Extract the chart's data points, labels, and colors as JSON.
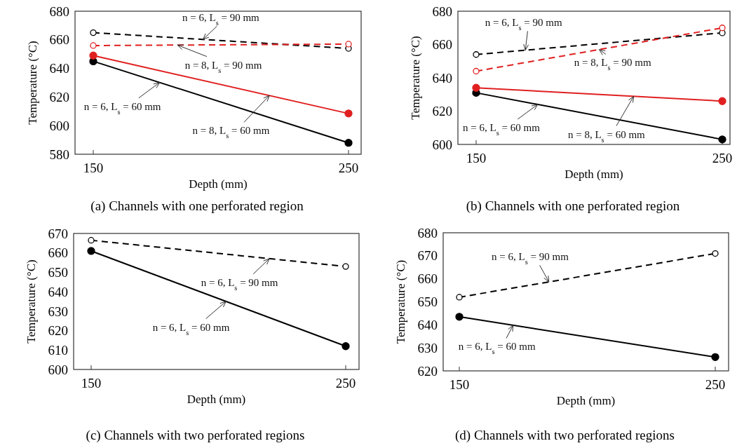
{
  "chart_data": [
    {
      "type": "line",
      "title": "(a) Channels with one perforated region",
      "xlabel": "Depth (mm)",
      "ylabel": "Temperature (°C)",
      "categories": [
        "150",
        "250"
      ],
      "ylim": [
        580,
        680
      ],
      "yticks": [
        580,
        600,
        620,
        640,
        660,
        680
      ],
      "marker": "circle",
      "series": [
        {
          "name": "n = 6, L$_{s}$ = 90 mm",
          "color": "#000000",
          "line_style": "dashed",
          "values": [
            665,
            654
          ]
        },
        {
          "name": "n = 8, L$_{s}$ = 90 mm",
          "color": "#e02020",
          "line_style": "dashed",
          "values": [
            656,
            657
          ]
        },
        {
          "name": "n = 6, L$_{s}$ = 60 mm",
          "color": "#000000",
          "line_style": "solid",
          "values": [
            645,
            588
          ]
        },
        {
          "name": "n = 8, L$_{s}$ = 60 mm",
          "color": "#e02020",
          "line_style": "solid",
          "values": [
            649,
            608.5
          ]
        }
      ]
    },
    {
      "type": "line",
      "title": "(b) Channels with one perforated region",
      "xlabel": "Depth (mm)",
      "ylabel": "Temperature (°C)",
      "categories": [
        "150",
        "250"
      ],
      "ylim": [
        600,
        680
      ],
      "yticks": [
        600,
        620,
        640,
        660,
        680
      ],
      "marker": "circle",
      "series": [
        {
          "name": "n = 6, L$_{s}$ = 90 mm",
          "color": "#000000",
          "line_style": "dashed",
          "values": [
            654,
            667
          ]
        },
        {
          "name": "n = 8, L$_{s}$ = 90 mm",
          "color": "#e02020",
          "line_style": "dashed",
          "values": [
            644,
            670
          ]
        },
        {
          "name": "n = 6, L$_{s}$ = 60 mm",
          "color": "#000000",
          "line_style": "solid",
          "values": [
            631,
            603
          ]
        },
        {
          "name": "n = 8, L$_{s}$ = 60 mm",
          "color": "#e02020",
          "line_style": "solid",
          "values": [
            634,
            626
          ]
        }
      ]
    },
    {
      "type": "line",
      "title": "(c) Channels with two perforated regions",
      "xlabel": "Depth (mm)",
      "ylabel": "Temperature (°C)",
      "categories": [
        "150",
        "250"
      ],
      "ylim": [
        600,
        670
      ],
      "yticks": [
        600,
        610,
        620,
        630,
        640,
        650,
        660,
        670
      ],
      "marker": "circle",
      "series": [
        {
          "name": "n = 6, L$_{s}$ = 90 mm",
          "color": "#000000",
          "line_style": "dashed",
          "values": [
            666.5,
            653
          ]
        },
        {
          "name": "n = 6, L$_{s}$ = 60 mm",
          "color": "#000000",
          "line_style": "solid",
          "values": [
            661,
            612
          ]
        }
      ]
    },
    {
      "type": "line",
      "title": "(d) Channels with two perforated regions",
      "xlabel": "Depth (mm)",
      "ylabel": "Temperature (°C)",
      "categories": [
        "150",
        "250"
      ],
      "ylim": [
        620,
        680
      ],
      "yticks": [
        620,
        630,
        640,
        650,
        660,
        670,
        680
      ],
      "marker": "circle",
      "series": [
        {
          "name": "n = 6, L$_{s}$ = 90 mm",
          "color": "#000000",
          "line_style": "dashed",
          "values": [
            652,
            671
          ]
        },
        {
          "name": "n = 6, L$_{s}$ = 60 mm",
          "color": "#000000",
          "line_style": "solid",
          "values": [
            643.5,
            626
          ]
        }
      ]
    }
  ]
}
